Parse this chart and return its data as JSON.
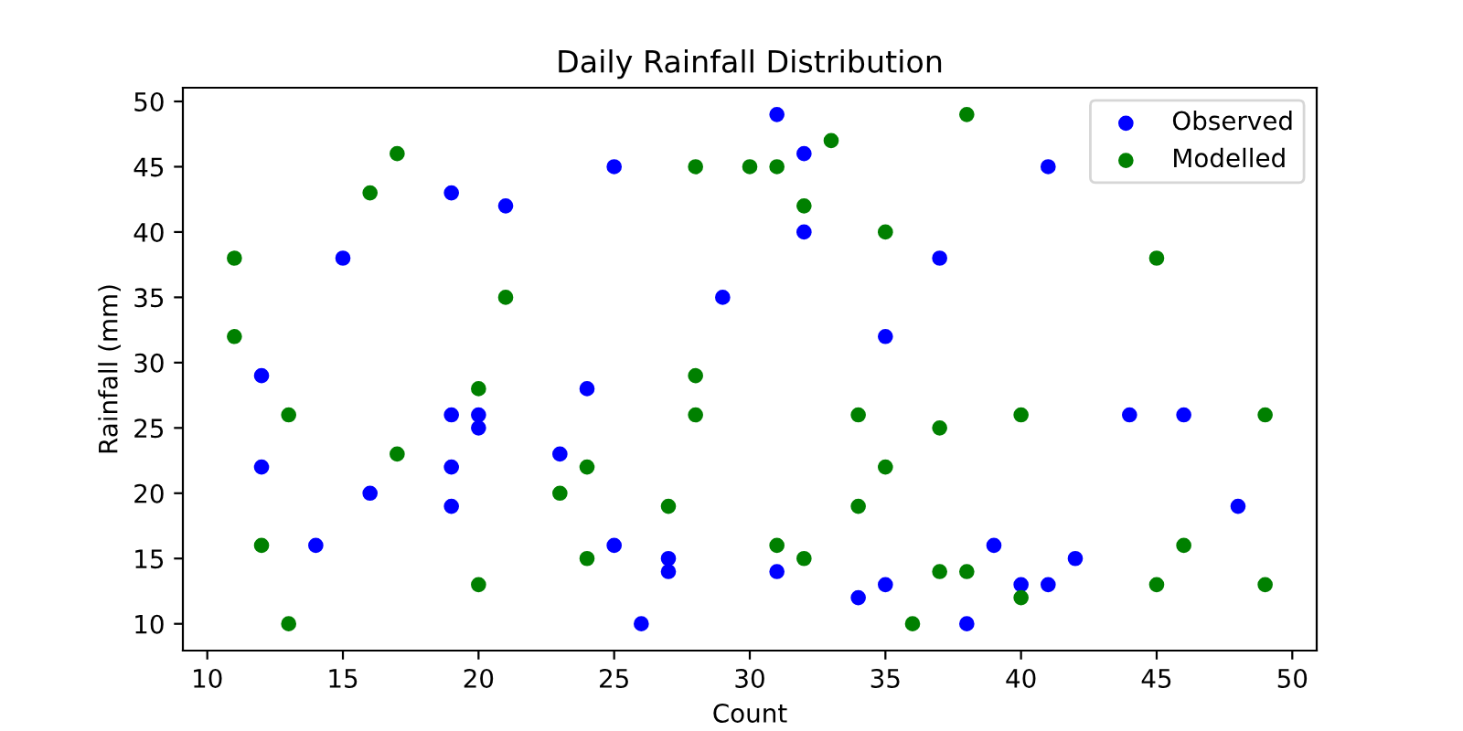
{
  "chart_data": {
    "type": "scatter",
    "title": "Daily Rainfall Distribution",
    "xlabel": "Count",
    "ylabel": "Rainfall (mm)",
    "xlim": [
      9.1,
      50.9
    ],
    "ylim": [
      7.95,
      51.05
    ],
    "xticks": [
      10,
      15,
      20,
      25,
      30,
      35,
      40,
      45,
      50
    ],
    "yticks": [
      10,
      15,
      20,
      25,
      30,
      35,
      40,
      45,
      50
    ],
    "grid": false,
    "legend": "top right",
    "marker": "circle",
    "series": [
      {
        "name": "Observed",
        "color": "#0000ff",
        "x": [
          31,
          32,
          21,
          41,
          25,
          19,
          15,
          32,
          37,
          29,
          35,
          12,
          24,
          19,
          20,
          20,
          44,
          46,
          12,
          19,
          23,
          16,
          19,
          48,
          14,
          25,
          39,
          27,
          42,
          27,
          31,
          35,
          40,
          41,
          34,
          26,
          38
        ],
        "values": [
          49,
          46,
          42,
          45,
          45,
          43,
          38,
          40,
          38,
          35,
          32,
          29,
          28,
          26,
          26,
          25,
          26,
          26,
          22,
          22,
          23,
          20,
          19,
          19,
          16,
          16,
          16,
          15,
          15,
          14,
          14,
          13,
          13,
          13,
          12,
          10,
          10
        ]
      },
      {
        "name": "Modelled",
        "color": "#008000",
        "x": [
          17,
          16,
          11,
          21,
          11,
          33,
          28,
          30,
          31,
          32,
          35,
          38,
          45,
          20,
          13,
          17,
          23,
          12,
          20,
          13,
          28,
          28,
          24,
          27,
          24,
          31,
          32,
          34,
          35,
          34,
          36,
          37,
          40,
          49,
          46,
          37,
          38,
          40,
          45,
          49
        ],
        "values": [
          46,
          43,
          38,
          35,
          32,
          47,
          45,
          45,
          45,
          42,
          40,
          49,
          38,
          28,
          26,
          23,
          20,
          16,
          13,
          10,
          29,
          26,
          22,
          19,
          15,
          16,
          15,
          26,
          22,
          19,
          10,
          25,
          26,
          26,
          16,
          14,
          14,
          12,
          13,
          13
        ]
      }
    ]
  }
}
